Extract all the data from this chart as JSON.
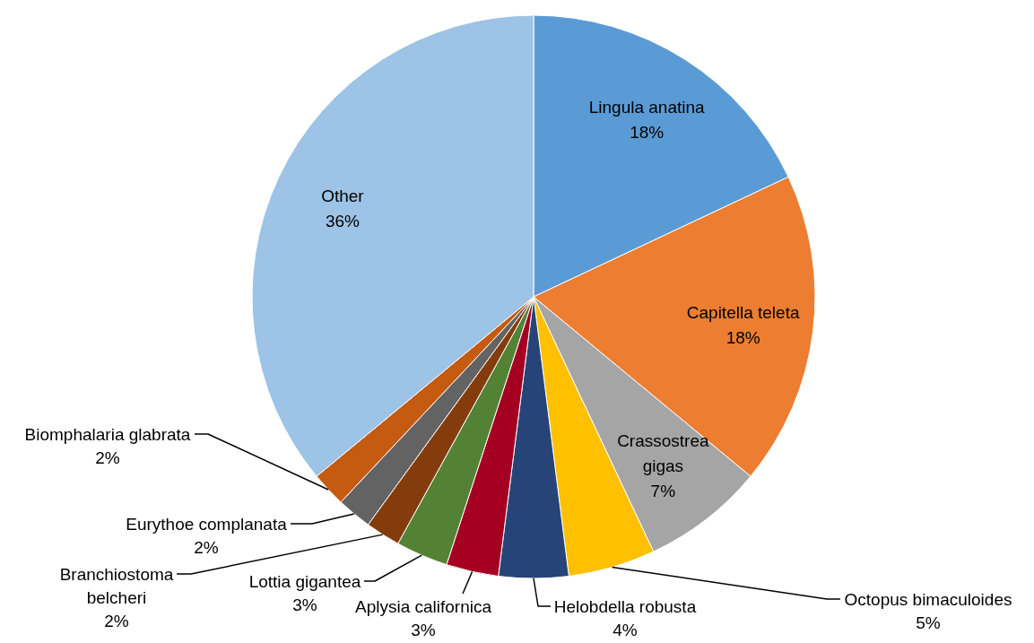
{
  "chart_data": {
    "type": "pie",
    "categories": [
      "Lingula anatina",
      "Capitella teleta",
      "Crassostrea gigas",
      "Octopus bimaculoides",
      "Helobdella robusta",
      "Aplysia californica",
      "Lottia gigantea",
      "Branchiostoma belcheri",
      "Eurythoe complanata",
      "Biomphalaria glabrata",
      "Other"
    ],
    "values": [
      18,
      18,
      7,
      5,
      4,
      3,
      3,
      2,
      2,
      2,
      36
    ],
    "colors": [
      "#5b9bd5",
      "#ed7d31",
      "#a5a5a5",
      "#ffc000",
      "#264478",
      "#a50021",
      "#548235",
      "#843c0c",
      "#636363",
      "#c55a11",
      "#9dc3e6"
    ],
    "value_labels": [
      "18%",
      "18%",
      "7%",
      "5%",
      "4%",
      "3%",
      "3%",
      "2%",
      "2%",
      "2%",
      "36%"
    ],
    "legend": false
  }
}
